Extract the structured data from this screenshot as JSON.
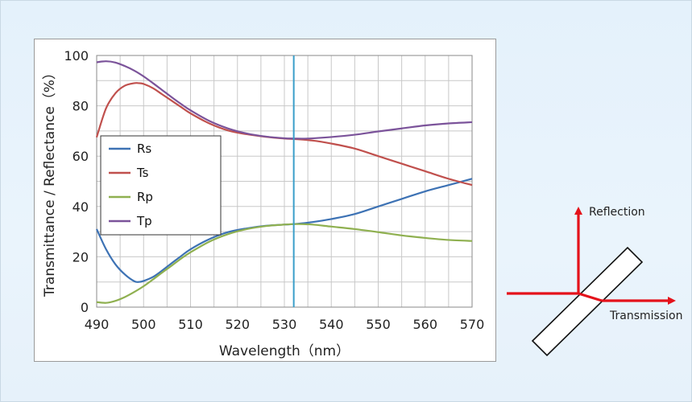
{
  "chart_data": {
    "type": "line",
    "xlabel": "Wavelength（nm）",
    "ylabel": "Transmittance / Reflectance（%）",
    "xlim": [
      490,
      570
    ],
    "ylim": [
      0,
      100
    ],
    "xticks": [
      490,
      500,
      510,
      520,
      530,
      540,
      550,
      560,
      570
    ],
    "yticks": [
      0,
      20,
      40,
      60,
      80,
      100
    ],
    "grid": true,
    "legend_position": "left-middle",
    "marker_line": {
      "x": 532,
      "color": "#3a9ec9"
    },
    "series": [
      {
        "name": "Rs",
        "color": "#3d72b4",
        "x": [
          490,
          492,
          494,
          496,
          498,
          499,
          500,
          502,
          504,
          506,
          508,
          510,
          514,
          518,
          522,
          526,
          530,
          532,
          536,
          540,
          545,
          550,
          555,
          560,
          565,
          570
        ],
        "y": [
          31,
          23,
          17,
          13,
          10.3,
          10,
          10.4,
          12,
          14.6,
          17.5,
          20.3,
          23,
          27,
          29.8,
          31.3,
          32.3,
          32.8,
          33,
          33.8,
          35,
          37,
          40,
          43,
          46,
          48.5,
          51
        ]
      },
      {
        "name": "Ts",
        "color": "#c0504d",
        "x": [
          490,
          492,
          494,
          496,
          498,
          499,
          500,
          502,
          504,
          506,
          508,
          510,
          514,
          518,
          522,
          526,
          530,
          532,
          536,
          540,
          545,
          550,
          555,
          560,
          565,
          570
        ],
        "y": [
          67.5,
          79,
          85,
          88,
          89,
          89,
          88.7,
          87,
          84.5,
          82,
          79.5,
          77,
          73,
          70.2,
          68.7,
          67.7,
          67,
          66.8,
          66.2,
          65,
          63,
          60,
          57,
          54,
          51,
          48.5
        ]
      },
      {
        "name": "Rp",
        "color": "#8fb050",
        "x": [
          490,
          492,
          494,
          496,
          498,
          500,
          502,
          504,
          506,
          508,
          510,
          514,
          518,
          522,
          526,
          530,
          533,
          536,
          540,
          545,
          550,
          555,
          560,
          565,
          570
        ],
        "y": [
          2,
          1.7,
          2.5,
          4,
          6,
          8.3,
          11,
          13.8,
          16.5,
          19.3,
          21.8,
          26,
          29,
          31,
          32.2,
          32.8,
          33,
          32.8,
          32,
          31,
          29.8,
          28.5,
          27.5,
          26.7,
          26.3
        ]
      },
      {
        "name": "Tp",
        "color": "#7b539a",
        "x": [
          490,
          492,
          494,
          496,
          498,
          500,
          502,
          504,
          506,
          508,
          510,
          514,
          518,
          522,
          526,
          530,
          532,
          535,
          540,
          545,
          550,
          555,
          560,
          565,
          570
        ],
        "y": [
          97.3,
          97.7,
          97.2,
          95.8,
          94,
          91.7,
          89,
          86.2,
          83.4,
          80.7,
          78.2,
          74,
          71,
          69,
          67.8,
          67.1,
          67,
          67,
          67.6,
          68.5,
          69.8,
          71,
          72.2,
          73,
          73.5
        ]
      }
    ]
  },
  "diagram": {
    "reflection_label": "Reflection",
    "transmission_label": "Transmission",
    "arrow_color": "#e4121b"
  }
}
